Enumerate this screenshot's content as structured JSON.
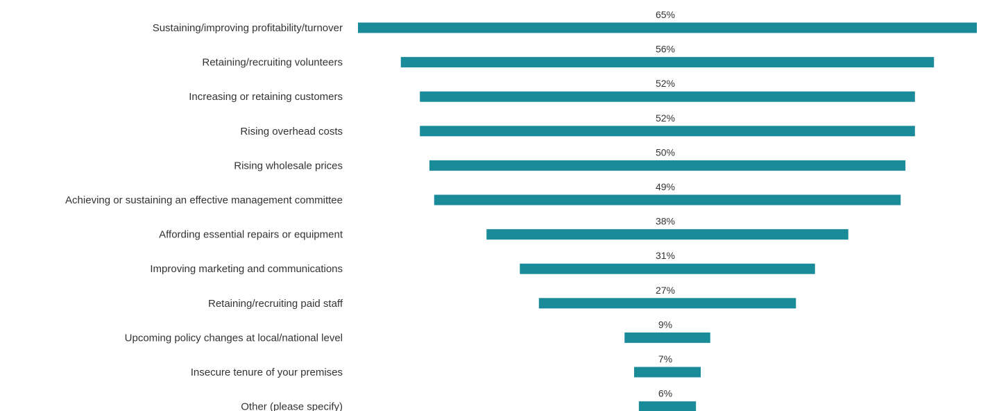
{
  "chart_data": {
    "type": "bar",
    "orientation": "horizontal",
    "alignment": "centered",
    "categories": [
      "Sustaining/improving profitability/turnover",
      "Retaining/recruiting volunteers",
      "Increasing or retaining customers",
      "Rising overhead costs",
      "Rising wholesale prices",
      "Achieving or sustaining an effective management committee",
      "Affording essential repairs or equipment",
      "Improving marketing and communications",
      "Retaining/recruiting paid staff",
      "Upcoming policy changes at local/national level",
      "Insecure tenure of your premises",
      "Other (please specify)"
    ],
    "values": [
      65,
      56,
      52,
      52,
      50,
      49,
      38,
      31,
      27,
      9,
      7,
      6
    ],
    "value_labels": [
      "65%",
      "56%",
      "52%",
      "52%",
      "50%",
      "49%",
      "38%",
      "31%",
      "27%",
      "9%",
      "7%",
      "6%"
    ],
    "bar_color": "#1a8c99",
    "grid": false,
    "legend": "none"
  }
}
